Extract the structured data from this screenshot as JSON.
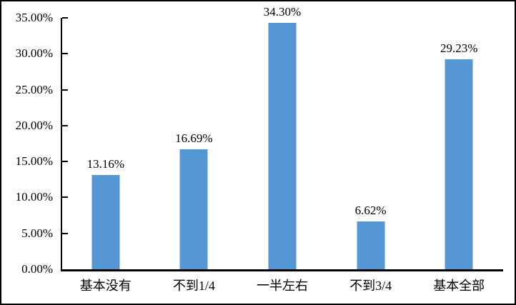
{
  "chart_data": {
    "type": "bar",
    "title": "",
    "xlabel": "",
    "ylabel": "",
    "categories": [
      "基本没有",
      "不到1/4",
      "一半左右",
      "不到3/4",
      "基本全部"
    ],
    "values": [
      13.16,
      16.69,
      34.3,
      6.62,
      29.23
    ],
    "value_labels": [
      "13.16%",
      "16.69%",
      "34.30%",
      "6.62%",
      "29.23%"
    ],
    "ylim": [
      0,
      35
    ],
    "ytick_step": 5,
    "ytick_labels": [
      "0.00%",
      "5.00%",
      "10.00%",
      "15.00%",
      "20.00%",
      "25.00%",
      "30.00%",
      "35.00%"
    ],
    "grid": false,
    "legend_position": "none",
    "bar_color": "#5596D5"
  },
  "colors": {
    "bar": "#5596D5",
    "axis": "#000000",
    "border": "#000000",
    "background": "#FFFFFF"
  }
}
